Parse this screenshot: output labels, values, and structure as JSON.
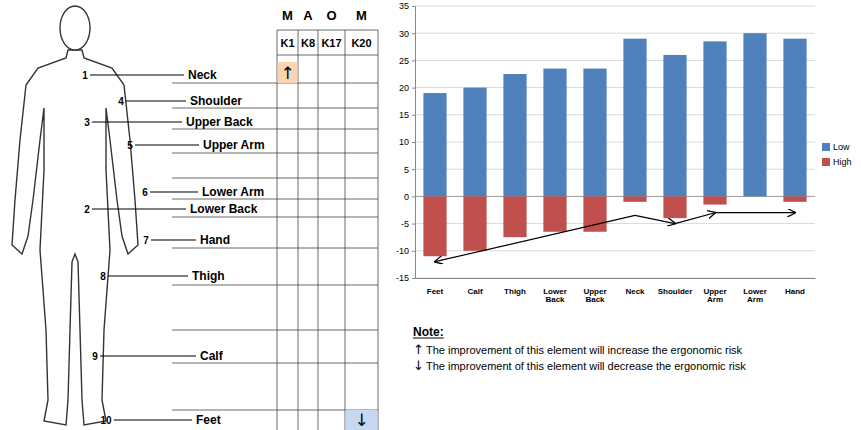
{
  "chart_data": {
    "type": "bar",
    "categories": [
      "Feet",
      "Calf",
      "Thigh",
      "Lower Back",
      "Upper Back",
      "Neck",
      "Shoulder",
      "Upper Arm",
      "Lower Arm",
      "Hand"
    ],
    "series": [
      {
        "name": "Low",
        "color": "#4f81bd",
        "values": [
          19,
          20,
          22.5,
          23.5,
          23.5,
          29,
          26,
          28.5,
          30,
          29
        ]
      },
      {
        "name": "High",
        "color": "#c0504d",
        "values": [
          -11,
          -10,
          -7.5,
          -6.5,
          -6.5,
          -1,
          -4,
          -1.5,
          0,
          -1
        ]
      }
    ],
    "ylim": [
      -15,
      35
    ],
    "yticks": [
      -15,
      -10,
      -5,
      0,
      5,
      10,
      15,
      20,
      25,
      30,
      35
    ],
    "grid": true,
    "legend": "right",
    "trend_arrows": [
      {
        "from": [
          5,
          -3.5
        ],
        "to": [
          0,
          -12
        ]
      },
      {
        "from": [
          5,
          -3.5
        ],
        "to": [
          6,
          -5
        ]
      },
      {
        "from": [
          6,
          -5
        ],
        "to": [
          7,
          -3
        ]
      },
      {
        "from": [
          7,
          -3
        ],
        "to": [
          9,
          -3
        ]
      }
    ]
  },
  "body_map": {
    "group_header": [
      "M",
      "A",
      "O",
      "M"
    ],
    "columns": [
      "K1",
      "K8",
      "K17",
      "K20"
    ],
    "parts": [
      {
        "number": "1",
        "label": "Neck",
        "cells": [
          "↑",
          null,
          null,
          null
        ]
      },
      {
        "number": "4",
        "label": "Shoulder",
        "cells": [
          null,
          null,
          null,
          null
        ]
      },
      {
        "number": "3",
        "label": "Upper Back",
        "cells": [
          null,
          null,
          null,
          null
        ]
      },
      {
        "number": "5",
        "label": "Upper Arm",
        "cells": [
          null,
          null,
          null,
          null
        ]
      },
      {
        "number": "6",
        "label": "Lower Arm",
        "cells": [
          null,
          null,
          null,
          null
        ]
      },
      {
        "number": "2",
        "label": "Lower Back",
        "cells": [
          null,
          null,
          null,
          null
        ]
      },
      {
        "number": "7",
        "label": "Hand",
        "cells": [
          null,
          null,
          null,
          null
        ]
      },
      {
        "number": "8",
        "label": "Thigh",
        "cells": [
          null,
          null,
          null,
          null
        ]
      },
      {
        "number": "9",
        "label": "Calf",
        "cells": [
          null,
          null,
          null,
          null
        ]
      },
      {
        "number": "10",
        "label": "Feet",
        "cells": [
          null,
          null,
          null,
          "↓"
        ]
      }
    ]
  },
  "note": {
    "title": "Note:",
    "items": [
      {
        "symbol": "↑",
        "text": "The improvement of this element will increase the ergonomic risk"
      },
      {
        "symbol": "↓",
        "text": "The improvement of this element will decrease the ergonomic risk"
      }
    ]
  }
}
